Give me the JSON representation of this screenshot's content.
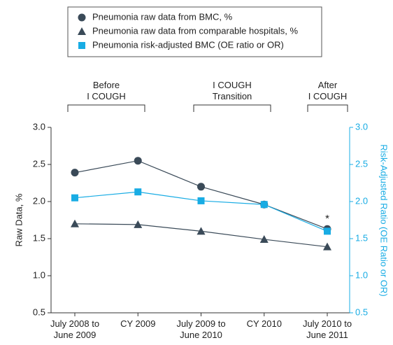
{
  "chart_data": {
    "type": "line",
    "categories": [
      "July 2008 to\nJune 2009",
      "CY 2009",
      "July 2009 to\nJune 2010",
      "CY 2010",
      "July 2010 to\nJune 2011"
    ],
    "series": [
      {
        "name": "Pneumonia raw data from BMC, %",
        "color": "#3a4a58",
        "marker": "circle",
        "values": [
          2.39,
          2.55,
          2.2,
          1.96,
          1.63
        ]
      },
      {
        "name": "Pneumonia raw data from comparable hospitals, %",
        "color": "#3a4a58",
        "marker": "triangle",
        "values": [
          1.7,
          1.69,
          1.6,
          1.49,
          1.39
        ]
      },
      {
        "name": "Pneumonia risk-adjusted BMC (OE ratio or OR)",
        "color": "#18ace4",
        "marker": "square",
        "axis": "y2",
        "values": [
          2.05,
          2.13,
          2.01,
          1.96,
          1.6
        ]
      }
    ],
    "y_label": "Raw Data, %",
    "y2_label": "Risk-Adjusted Ratio (OE Ratio or OR)",
    "ylim": [
      0.5,
      3.0
    ],
    "yticks": [
      0.5,
      {
        "value": 1,
        "label": "1.0"
      },
      1.5,
      {
        "value": 2,
        "label": "2.0"
      },
      2.5,
      {
        "value": 3,
        "label": "3.0"
      }
    ],
    "y2lim": [
      0.5,
      3.0
    ],
    "y2ticks": [
      0.5,
      {
        "value": 1,
        "label": "1.0"
      },
      1.5,
      {
        "value": 2,
        "label": "2.0"
      },
      2.5,
      {
        "value": 3,
        "label": "3.0"
      }
    ],
    "y2_color": "#18ace4",
    "phases": [
      "Before\nI COUGH",
      "I COUGH\nTransition",
      "After\nI COUGH"
    ],
    "significance_marker": "*"
  }
}
